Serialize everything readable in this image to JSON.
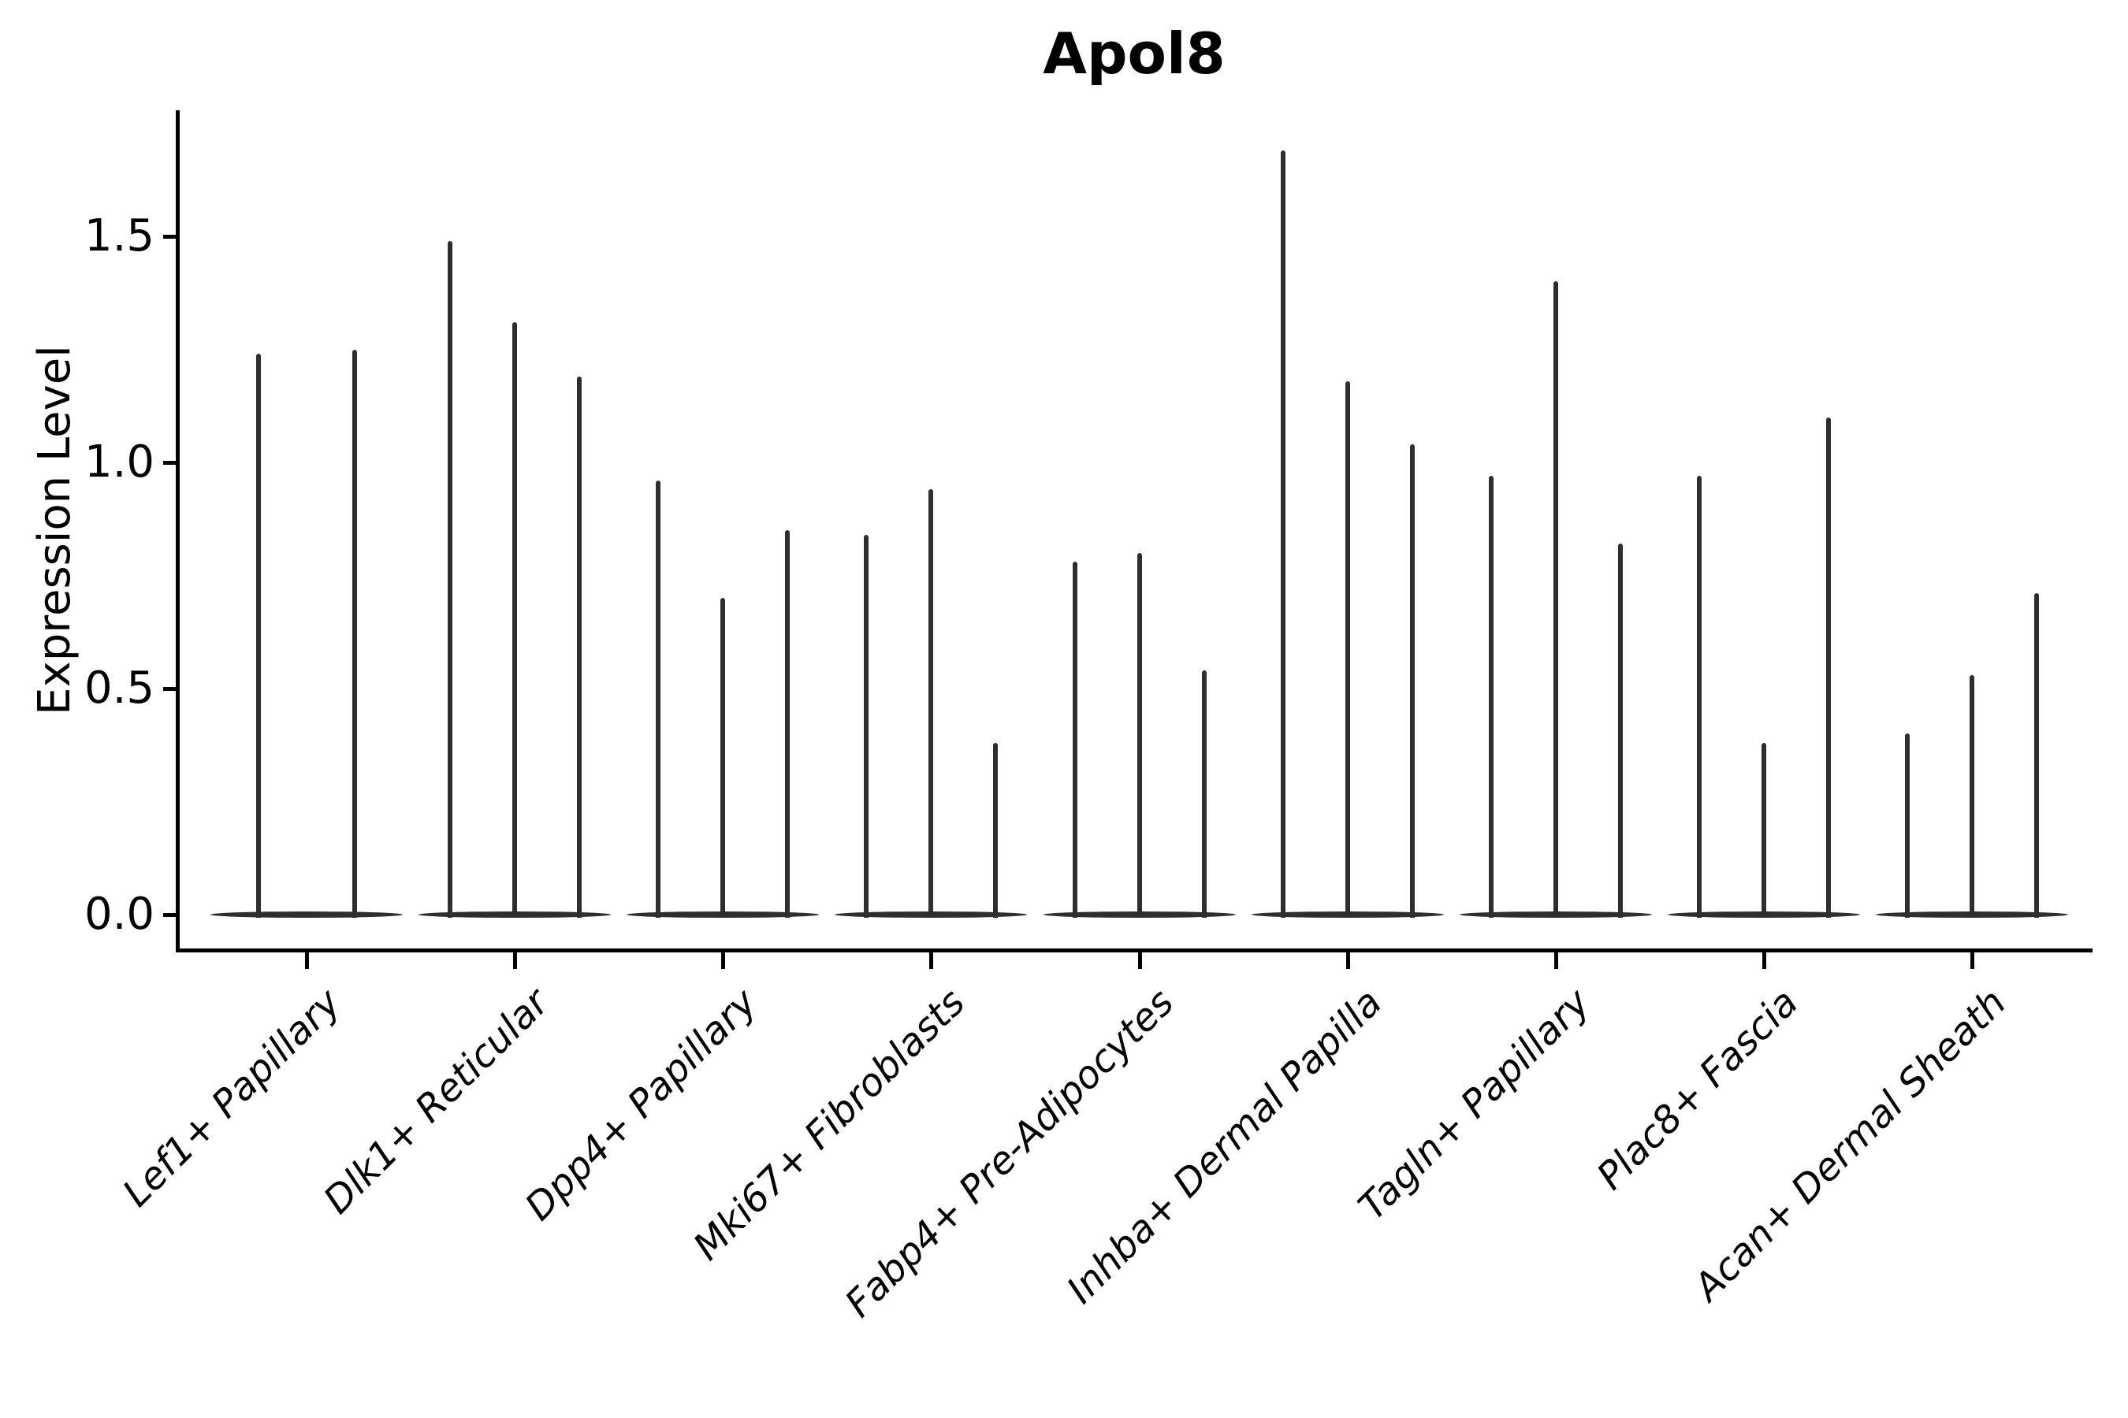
{
  "chart_data": {
    "type": "violin",
    "title": "Apol8",
    "ylabel": "Expression Level",
    "xlabel": "",
    "categories": [
      "Lef1+ Papillary",
      "Dlk1+ Reticular",
      "Dpp4+ Papillary",
      "Mki67+ Fibroblasts",
      "Fabp4+ Pre-Adipocytes",
      "Inhba+ Dermal Papilla",
      "Tagln+ Papillary",
      "Plac8+ Fascia",
      "Acan+ Dermal Sheath"
    ],
    "series_note": "Each category shows thin violins (expression mostly 0 with a sparse tail); values below are the peak (max) expression level reached by each violin tail, left to right within the group.",
    "violins_per_category": [
      2,
      3,
      3,
      3,
      3,
      3,
      3,
      3,
      3
    ],
    "peak_values": [
      [
        1.24,
        1.25
      ],
      [
        1.49,
        1.31,
        1.19
      ],
      [
        0.96,
        0.7,
        0.85
      ],
      [
        0.84,
        0.94,
        0.38
      ],
      [
        0.78,
        0.8,
        0.54
      ],
      [
        1.69,
        1.18,
        1.04
      ],
      [
        0.97,
        1.4,
        0.82
      ],
      [
        0.97,
        0.38,
        1.1
      ],
      [
        0.4,
        0.53,
        0.71
      ]
    ],
    "baseline_value": 0.0,
    "ytick_labels": [
      "0.0",
      "0.5",
      "1.0",
      "1.5"
    ],
    "ytick_values": [
      0.0,
      0.5,
      1.0,
      1.5
    ],
    "ylim": [
      0.0,
      1.78
    ],
    "grid": "off",
    "legend": "none",
    "colors": {
      "violin": "#2e2e2e",
      "axis": "#000000",
      "text": "#000000",
      "background": "#ffffff"
    }
  }
}
